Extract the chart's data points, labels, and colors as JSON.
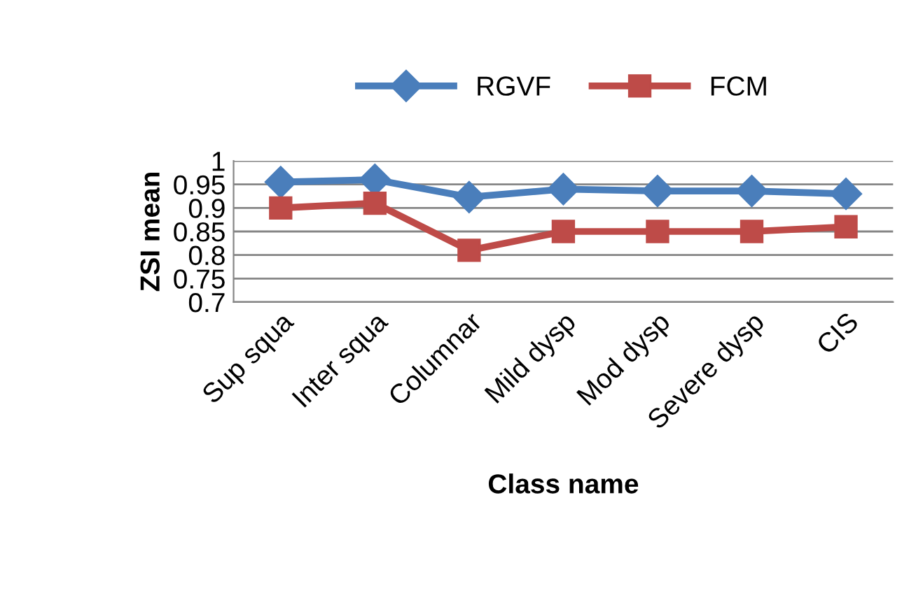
{
  "chart_data": {
    "type": "line",
    "xlabel": "Class name",
    "ylabel": "ZSI mean",
    "categories": [
      "Sup squa",
      "Inter squa",
      "Columnar",
      "Mild dysp",
      "Mod dysp",
      "Severe dysp",
      "CIS"
    ],
    "series": [
      {
        "name": "RGVF",
        "color": "#4a7ebb",
        "marker": "diamond",
        "values": [
          0.955,
          0.96,
          0.923,
          0.94,
          0.936,
          0.936,
          0.93
        ]
      },
      {
        "name": "FCM",
        "color": "#be4b48",
        "marker": "square",
        "values": [
          0.9,
          0.91,
          0.81,
          0.85,
          0.85,
          0.85,
          0.86
        ]
      }
    ],
    "ylim": [
      0.7,
      1
    ],
    "yticks": [
      0.7,
      0.75,
      0.8,
      0.85,
      0.9,
      0.95,
      1
    ],
    "grid": "y",
    "legend": "top",
    "line_style": "solid"
  }
}
